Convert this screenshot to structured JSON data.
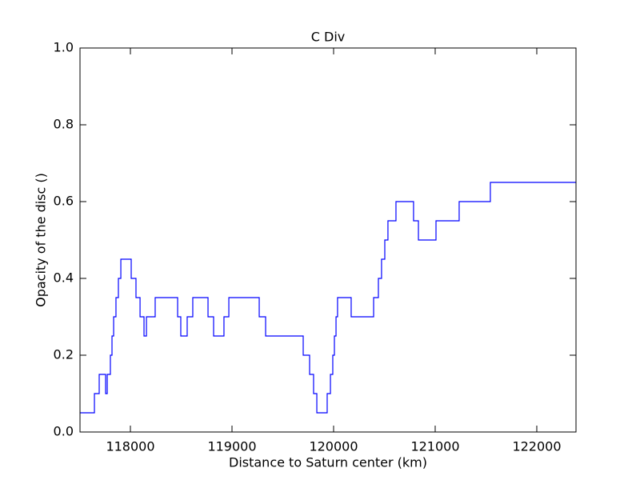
{
  "chart_data": {
    "type": "line",
    "title": "C Div",
    "x_label": "Distance to Saturn center (km)",
    "y_label": "Opacity of the disc ()",
    "x": [
      117504,
      117646,
      117646,
      117693,
      117693,
      117756,
      117756,
      117772,
      117772,
      117803,
      117803,
      117819,
      117819,
      117835,
      117835,
      117858,
      117858,
      117882,
      117882,
      117906,
      117906,
      118008,
      118008,
      118055,
      118055,
      118095,
      118095,
      118134,
      118134,
      118158,
      118158,
      118244,
      118244,
      118465,
      118465,
      118496,
      118496,
      118559,
      118559,
      118614,
      118614,
      118764,
      118764,
      118819,
      118819,
      118921,
      118921,
      118969,
      118969,
      119268,
      119268,
      119331,
      119331,
      119701,
      119701,
      119764,
      119764,
      119803,
      119803,
      119835,
      119835,
      119937,
      119937,
      119969,
      119969,
      119992,
      119992,
      120008,
      120008,
      120024,
      120024,
      120039,
      120039,
      120173,
      120173,
      120394,
      120394,
      120441,
      120441,
      120472,
      120472,
      120504,
      120504,
      120535,
      120535,
      120614,
      120614,
      120787,
      120787,
      120835,
      120835,
      121008,
      121008,
      121236,
      121236,
      121543,
      121543,
      122386
    ],
    "values": [
      0.05,
      0.05,
      0.1,
      0.1,
      0.15,
      0.15,
      0.1,
      0.1,
      0.15,
      0.15,
      0.2,
      0.2,
      0.25,
      0.25,
      0.3,
      0.3,
      0.35,
      0.35,
      0.4,
      0.4,
      0.45,
      0.45,
      0.4,
      0.4,
      0.35,
      0.35,
      0.3,
      0.3,
      0.25,
      0.25,
      0.3,
      0.3,
      0.35,
      0.35,
      0.3,
      0.3,
      0.25,
      0.25,
      0.3,
      0.3,
      0.35,
      0.35,
      0.3,
      0.3,
      0.25,
      0.25,
      0.3,
      0.3,
      0.35,
      0.35,
      0.3,
      0.3,
      0.25,
      0.25,
      0.2,
      0.2,
      0.15,
      0.15,
      0.1,
      0.1,
      0.05,
      0.05,
      0.1,
      0.1,
      0.15,
      0.15,
      0.2,
      0.2,
      0.25,
      0.25,
      0.3,
      0.3,
      0.35,
      0.35,
      0.3,
      0.3,
      0.35,
      0.35,
      0.4,
      0.4,
      0.45,
      0.45,
      0.5,
      0.5,
      0.55,
      0.55,
      0.6,
      0.6,
      0.55,
      0.55,
      0.5,
      0.5,
      0.55,
      0.55,
      0.6,
      0.6,
      0.65,
      0.65
    ],
    "color": "#0000ff",
    "xlim": [
      117504,
      122386
    ],
    "xticks": [
      118000,
      119000,
      120000,
      121000,
      122000
    ],
    "ylim": [
      0,
      1
    ],
    "yticks": [
      {
        "value": 0,
        "label": "0.0"
      },
      0.2,
      0.4,
      0.6,
      0.8,
      {
        "value": 1,
        "label": "1.0"
      }
    ],
    "grid": false
  }
}
